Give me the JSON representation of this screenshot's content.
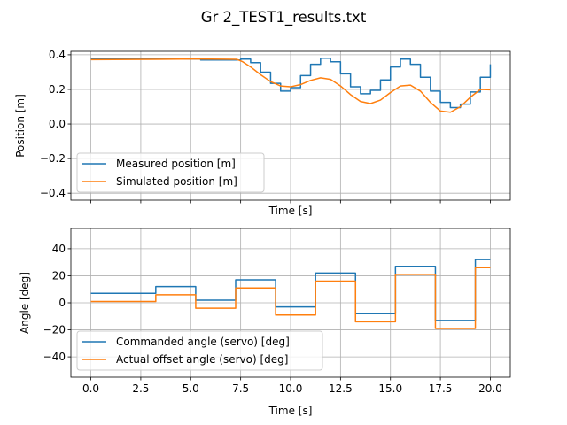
{
  "figure": {
    "title": "Gr 2_TEST1_results.txt"
  },
  "chart_data": [
    {
      "type": "line",
      "xlabel": "Time [s]",
      "ylabel": "Position [m]",
      "xlim": [
        -1.0,
        21.0
      ],
      "ylim": [
        -0.44,
        0.42
      ],
      "xticks": [
        0.0,
        2.5,
        5.0,
        7.5,
        10.0,
        12.5,
        15.0,
        17.5,
        20.0
      ],
      "xtick_labels_shown": false,
      "yticks": [
        -0.4,
        -0.2,
        0.0,
        0.2,
        0.4
      ],
      "ytick_labels": [
        "−0.4",
        "−0.2",
        "0.0",
        "0.2",
        "0.4"
      ],
      "grid": true,
      "legend_position": "lower-left",
      "series": [
        {
          "name": "Measured position [m]",
          "color": "#1f77b4",
          "step": true,
          "x": [
            0,
            5.5,
            7.5,
            8.0,
            8.5,
            9.0,
            9.5,
            10.0,
            10.5,
            11.0,
            11.5,
            12.0,
            12.5,
            13.0,
            13.5,
            14.0,
            14.5,
            15.0,
            15.5,
            16.0,
            16.5,
            17.0,
            17.5,
            18.0,
            18.5,
            19.0,
            19.5,
            20.0
          ],
          "y": [
            0.375,
            0.37,
            0.375,
            0.355,
            0.3,
            0.235,
            0.19,
            0.21,
            0.28,
            0.345,
            0.38,
            0.36,
            0.29,
            0.215,
            0.175,
            0.195,
            0.255,
            0.33,
            0.375,
            0.345,
            0.27,
            0.19,
            0.125,
            0.095,
            0.115,
            0.185,
            0.27,
            0.345
          ]
        },
        {
          "name": "Simulated position [m]",
          "color": "#ff7f0e",
          "step": false,
          "x": [
            0,
            3.2,
            5.2,
            7.3,
            7.6,
            8.0,
            8.5,
            9.0,
            9.5,
            10.0,
            10.5,
            11.0,
            11.5,
            12.0,
            12.5,
            13.0,
            13.5,
            14.0,
            14.5,
            15.0,
            15.5,
            16.0,
            16.5,
            17.0,
            17.5,
            18.0,
            18.5,
            19.0,
            19.5,
            20.0
          ],
          "y": [
            0.372,
            0.374,
            0.376,
            0.374,
            0.36,
            0.33,
            0.285,
            0.245,
            0.22,
            0.215,
            0.228,
            0.252,
            0.267,
            0.258,
            0.22,
            0.17,
            0.13,
            0.118,
            0.138,
            0.182,
            0.22,
            0.225,
            0.19,
            0.125,
            0.075,
            0.068,
            0.1,
            0.155,
            0.2,
            0.198
          ]
        }
      ]
    },
    {
      "type": "line",
      "xlabel": "Time [s]",
      "ylabel": "Angle [deg]",
      "xlim": [
        -1.0,
        21.0
      ],
      "ylim": [
        -55,
        55
      ],
      "xticks": [
        0.0,
        2.5,
        5.0,
        7.5,
        10.0,
        12.5,
        15.0,
        17.5,
        20.0
      ],
      "xtick_labels": [
        "0.0",
        "2.5",
        "5.0",
        "7.5",
        "10.0",
        "12.5",
        "15.0",
        "17.5",
        "20.0"
      ],
      "yticks": [
        -40,
        -20,
        0,
        20,
        40
      ],
      "ytick_labels": [
        "−40",
        "−20",
        "0",
        "20",
        "40"
      ],
      "grid": true,
      "legend_position": "lower-left",
      "series": [
        {
          "name": "Commanded angle (servo) [deg]",
          "color": "#1f77b4",
          "step": true,
          "x": [
            0,
            3.25,
            5.25,
            7.25,
            9.25,
            11.25,
            13.25,
            15.25,
            17.25,
            19.25,
            20.0
          ],
          "y": [
            7,
            12,
            2,
            17,
            -3,
            22,
            -8,
            27,
            -13,
            32,
            32
          ]
        },
        {
          "name": "Actual offset angle (servo) [deg]",
          "color": "#ff7f0e",
          "step": true,
          "x": [
            0,
            3.25,
            5.25,
            7.25,
            9.25,
            11.25,
            13.25,
            15.25,
            17.25,
            19.25,
            20.0
          ],
          "y": [
            1,
            6,
            -4,
            11,
            -9,
            16,
            -14,
            21,
            -19,
            26,
            26
          ]
        }
      ]
    }
  ]
}
